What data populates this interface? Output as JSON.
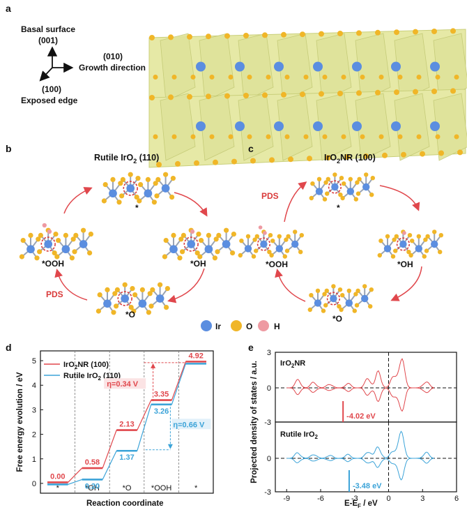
{
  "panels": {
    "a": "a",
    "b": "b",
    "c": "c",
    "d": "d",
    "e": "e"
  },
  "panel_a": {
    "basal_label": "Basal surface",
    "basal_index": "(001)",
    "growth_index": "(010)",
    "growth_label": "Growth direction",
    "edge_index": "(100)",
    "edge_label": "Exposed edge"
  },
  "panel_b": {
    "title": "Rutile IrO",
    "title_sub": "2",
    "title_tail": " (110)",
    "states": [
      "*",
      "*OH",
      "*O",
      "*OOH"
    ],
    "pds": "PDS"
  },
  "panel_c": {
    "title": "IrO",
    "title_sub": "2",
    "title_tail": "NR (100)",
    "states": [
      "*",
      "*OH",
      "*O",
      "*OOH"
    ],
    "pds": "PDS"
  },
  "atom_legend": [
    {
      "symbol": "Ir",
      "color": "#5b8ee0"
    },
    {
      "symbol": "O",
      "color": "#f0b628"
    },
    {
      "symbol": "H",
      "color": "#ee9aa2"
    }
  ],
  "colors": {
    "red": "#e0474c",
    "blue": "#3ba3d8",
    "crystal": "#e6e9a6"
  },
  "chart_data": [
    {
      "type": "line",
      "panel": "d",
      "xlabel": "Reaction coordinate",
      "ylabel": "Free energy evolution / eV",
      "categories": [
        "*",
        "*OH",
        "*O",
        "*OOH",
        "*"
      ],
      "ylim": [
        -0.4,
        5.4
      ],
      "yticks": [
        "0",
        "1",
        "2",
        "3",
        "4",
        "5"
      ],
      "series": [
        {
          "name": "IrO",
          "name_sub": "2",
          "name_tail": "NR (100)",
          "color": "#e0474c",
          "values": [
            0.0,
            0.58,
            2.13,
            3.35,
            4.92
          ],
          "labels": [
            "0.00",
            "0.58",
            "2.13",
            "3.35",
            "4.92"
          ]
        },
        {
          "name": "Rutile IrO",
          "name_sub": "2",
          "name_tail": " (110)",
          "color": "#3ba3d8",
          "values": [
            0.0,
            0.2,
            1.37,
            3.26,
            4.92
          ],
          "labels": [
            "",
            "0.20",
            "1.37",
            "3.26",
            ""
          ]
        }
      ],
      "annotations": [
        {
          "text": "η=0.34 V",
          "color": "#e0474c"
        },
        {
          "text": "η=0.66 V",
          "color": "#3ba3d8"
        }
      ]
    },
    {
      "type": "line",
      "panel": "e",
      "xlabel": "E-E",
      "xlabel_sub": "F",
      "xlabel_tail": " / eV",
      "ylabel": "Projected density of states / a.u.",
      "xlim": [
        -10,
        6
      ],
      "xticks": [
        "-9",
        "-6",
        "-3",
        "0",
        "3",
        "6"
      ],
      "subplots": [
        {
          "name": "IrO",
          "name_sub": "2",
          "name_tail": "NR",
          "color": "#e0474c",
          "yticks": [
            "3",
            "0",
            "-3"
          ],
          "d_band_center": -4.02,
          "d_band_label": "-4.02 eV"
        },
        {
          "name": "Rutile IrO",
          "name_sub": "2",
          "name_tail": "",
          "color": "#3ba3d8",
          "yticks": [
            "0",
            "-3"
          ],
          "d_band_center": -3.48,
          "d_band_label": "-3.48 eV"
        }
      ]
    }
  ]
}
